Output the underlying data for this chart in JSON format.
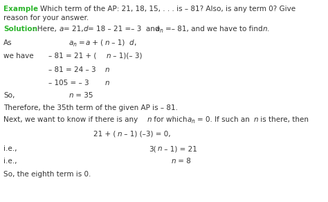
{
  "background_color": "#ffffff",
  "fig_width": 4.74,
  "fig_height": 2.92,
  "dpi": 100,
  "green_color": "#2db52d",
  "text_color": "#333333",
  "fs": 7.5,
  "fs_sub": 5.5
}
